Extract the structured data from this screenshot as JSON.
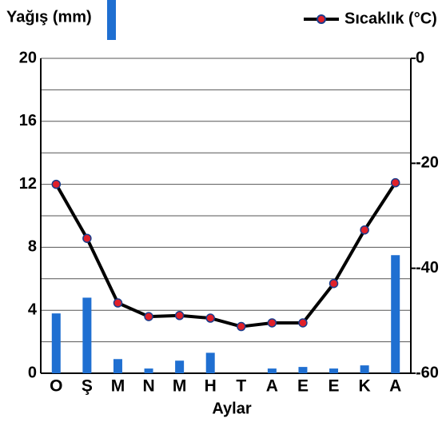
{
  "chart_data": {
    "type": "bar-line",
    "xlabel": "Aylar",
    "categories": [
      "O",
      "Ş",
      "M",
      "N",
      "M",
      "H",
      "T",
      "A",
      "E",
      "E",
      "K",
      "A"
    ],
    "series": [
      {
        "name": "Yağış (mm)",
        "type": "bar",
        "color": "#1f6fd1",
        "values": [
          3.8,
          4.8,
          0.9,
          0.3,
          0.8,
          1.3,
          0,
          0.3,
          0.4,
          0.3,
          0.5,
          7.5
        ]
      },
      {
        "name": "Sıcaklık (°C)",
        "type": "line",
        "axis": "y2",
        "color": "#000000",
        "marker_color": "#e0202a",
        "values": [
          -24,
          -34.3,
          -46.6,
          -49.2,
          -49,
          -49.5,
          -51.1,
          -50.4,
          -50.4,
          -42.9,
          -32.7,
          -23.7
        ]
      }
    ],
    "ylim": [
      0,
      20
    ],
    "yticks": [
      0,
      4,
      8,
      12,
      16,
      20
    ],
    "ygrid": [
      0,
      2,
      4,
      6,
      8,
      10,
      12,
      14,
      16,
      18,
      20
    ],
    "y2lim": [
      -60,
      0
    ],
    "y2ticks": [
      -60,
      -40,
      -20,
      0
    ]
  }
}
